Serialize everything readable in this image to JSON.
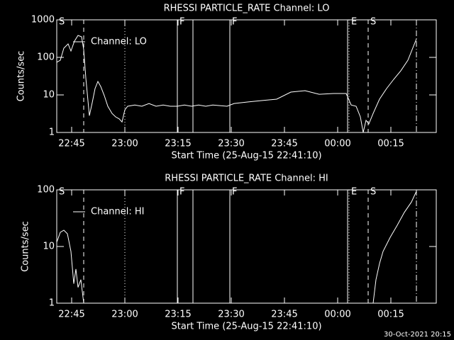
{
  "chart_data": [
    {
      "type": "line",
      "title": "RHESSI PARTICLE_RATE Channel: LO",
      "ylabel": "Counts/sec",
      "xlabel": "Start Time (25-Aug-15 22:41:10)",
      "background": "#000000",
      "ylog": true,
      "legend": "upper left",
      "xlim": [
        1360.8,
        1467.8
      ],
      "xticks": [
        {
          "value": 1365,
          "label": "22:45"
        },
        {
          "value": 1380,
          "label": "23:00"
        },
        {
          "value": 1395,
          "label": "23:15"
        },
        {
          "value": 1410,
          "label": "23:30"
        },
        {
          "value": 1425,
          "label": "23:45"
        },
        {
          "value": 1440,
          "label": "00:00"
        },
        {
          "value": 1455,
          "label": "00:15"
        }
      ],
      "ylim": [
        1,
        1000
      ],
      "yticks": [
        1,
        10,
        100,
        1000
      ],
      "markers": [
        {
          "x": 1360.8,
          "style": "solid",
          "label": "S"
        },
        {
          "x": 1368.4,
          "style": "dashed"
        },
        {
          "x": 1380.0,
          "style": "dotted"
        },
        {
          "x": 1394.8,
          "style": "solid",
          "label": "F"
        },
        {
          "x": 1399.2,
          "style": "solid"
        },
        {
          "x": 1409.6,
          "style": "solid",
          "label": "F"
        },
        {
          "x": 1442.8,
          "style": "solid"
        },
        {
          "x": 1443.2,
          "style": "dotted",
          "label": "E"
        },
        {
          "x": 1448.6,
          "style": "dashed",
          "label": "S"
        },
        {
          "x": 1462.2,
          "style": "dashdot"
        }
      ],
      "series": [
        {
          "name": "Channel: LO",
          "color": "#ffffff",
          "x": [
            1360.8,
            1361.8,
            1362.8,
            1364.0,
            1364.8,
            1365.8,
            1366.8,
            1367.8,
            1368.4,
            1369.0,
            1370.0,
            1370.8,
            1371.6,
            1372.4,
            1373.2,
            1374.2,
            1375.2,
            1376.4,
            1377.4,
            1378.4,
            1379.2,
            1380.0,
            1380.8,
            1382.8,
            1384.8,
            1386.8,
            1388.8,
            1390.8,
            1392.8,
            1394.8,
            1396.8,
            1398.8,
            1400.8,
            1402.8,
            1404.8,
            1408.8,
            1410.8,
            1414.8,
            1418.8,
            1422.8,
            1426.8,
            1430.8,
            1434.8,
            1438.8,
            1442.4,
            1443.8,
            1445.2,
            1446.4,
            1447.2,
            1448.0,
            1448.8,
            1450.0,
            1451.8,
            1453.8,
            1455.8,
            1457.8,
            1459.8,
            1462.2
          ],
          "values": [
            74,
            84,
            176,
            228,
            148,
            272,
            384,
            352,
            161,
            28,
            2.8,
            6.2,
            14.8,
            22.8,
            16.8,
            9.6,
            5.0,
            3.2,
            2.6,
            2.3,
            1.9,
            4.0,
            5.0,
            5.4,
            5.0,
            5.9,
            5.0,
            5.4,
            5.0,
            5.0,
            5.4,
            5.0,
            5.4,
            5.0,
            5.4,
            5.0,
            5.9,
            6.5,
            7.1,
            7.7,
            11.9,
            13.0,
            10.4,
            10.9,
            10.9,
            5.4,
            5.0,
            2.6,
            1.0,
            2.1,
            1.7,
            3.2,
            7.7,
            14.8,
            26,
            44,
            84,
            310
          ]
        }
      ]
    },
    {
      "type": "line",
      "title": "RHESSI PARTICLE_RATE Channel: HI",
      "ylabel": "Counts/sec",
      "xlabel": "Start Time (25-Aug-15 22:41:10)",
      "background": "#000000",
      "ylog": true,
      "legend": "upper left",
      "xlim": [
        1360.8,
        1467.8
      ],
      "xticks": [
        {
          "value": 1365,
          "label": "22:45"
        },
        {
          "value": 1380,
          "label": "23:00"
        },
        {
          "value": 1395,
          "label": "23:15"
        },
        {
          "value": 1410,
          "label": "23:30"
        },
        {
          "value": 1425,
          "label": "23:45"
        },
        {
          "value": 1440,
          "label": "00:00"
        },
        {
          "value": 1455,
          "label": "00:15"
        }
      ],
      "ylim": [
        1,
        100
      ],
      "yticks": [
        1,
        10,
        100
      ],
      "markers": [
        {
          "x": 1360.8,
          "style": "solid",
          "label": "S"
        },
        {
          "x": 1368.4,
          "style": "dashed"
        },
        {
          "x": 1380.0,
          "style": "dotted"
        },
        {
          "x": 1394.8,
          "style": "solid",
          "label": "F"
        },
        {
          "x": 1399.2,
          "style": "solid"
        },
        {
          "x": 1409.6,
          "style": "solid",
          "label": "F"
        },
        {
          "x": 1442.8,
          "style": "solid"
        },
        {
          "x": 1443.2,
          "style": "dotted",
          "label": "E"
        },
        {
          "x": 1448.6,
          "style": "dashed",
          "label": "S"
        },
        {
          "x": 1462.2,
          "style": "dashdot"
        }
      ],
      "series": [
        {
          "name": "Channel: HI",
          "color": "#ffffff",
          "x": [
            1360.8,
            1361.8,
            1362.8,
            1363.8,
            1364.8,
            1365.6,
            1366.2,
            1366.8,
            1367.6,
            1368.4,
            1400,
            1450.0,
            1450.8,
            1451.8,
            1452.8,
            1454.8,
            1456.8,
            1458.8,
            1460.8,
            1462.2
          ],
          "values": [
            11.9,
            17.8,
            19.4,
            16.8,
            8.2,
            2.2,
            4.0,
            1.9,
            2.6,
            1.0,
            null,
            1.0,
            2.6,
            5.0,
            8.2,
            14.5,
            23.7,
            40,
            61,
            94
          ]
        }
      ]
    }
  ],
  "footer": "30-Oct-2021 20:15"
}
